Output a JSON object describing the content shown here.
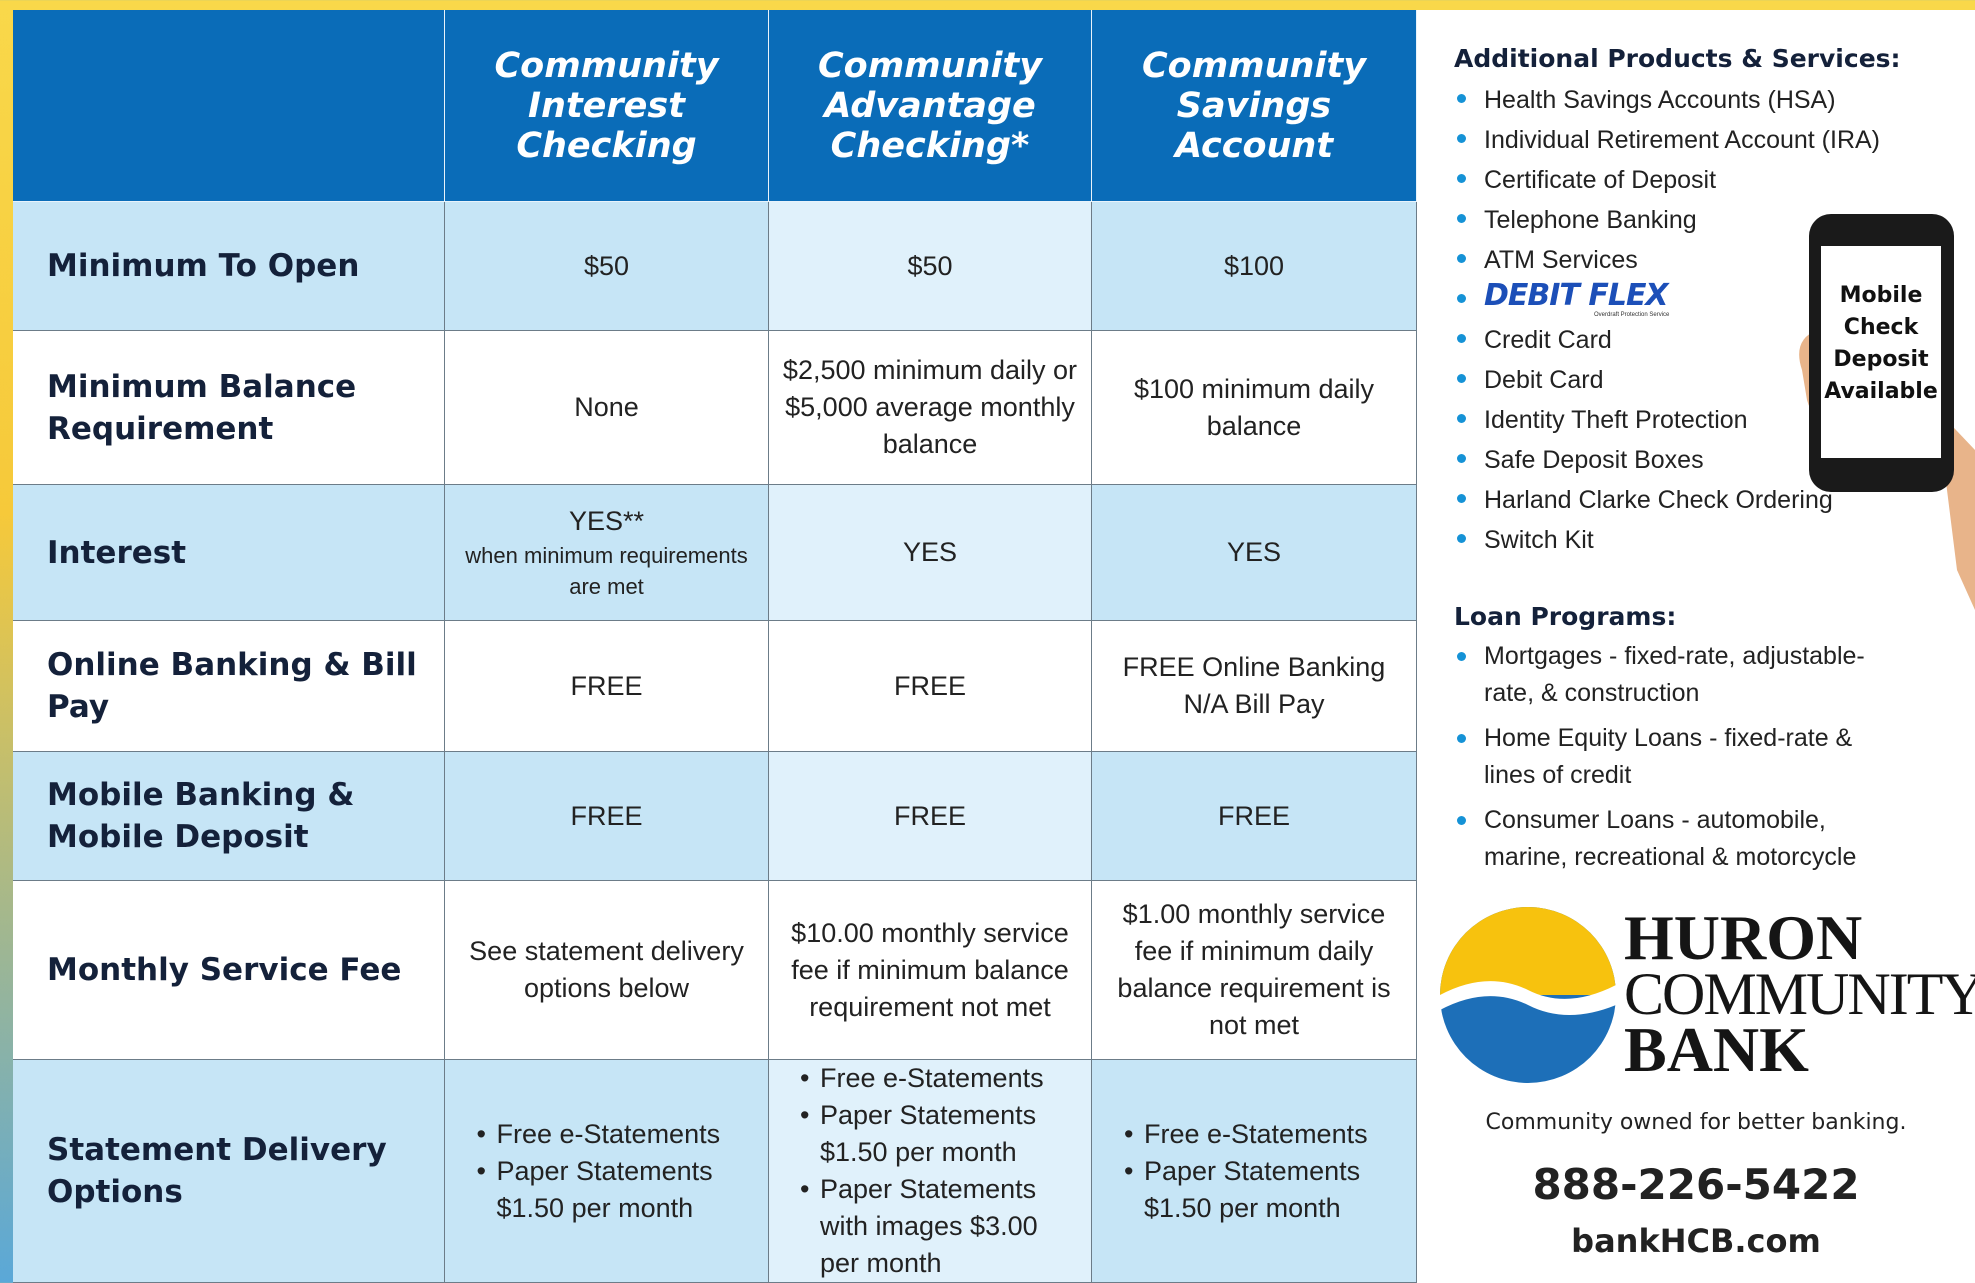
{
  "table": {
    "columns": [
      "Community Interest Checking",
      "Community Advantage Checking*",
      "Community Savings Account"
    ],
    "rows": [
      {
        "label": "Minimum To Open",
        "cells": [
          "$50",
          "$50",
          "$100"
        ]
      },
      {
        "label": "Minimum Balance Requirement",
        "cells": [
          "None",
          "$2,500 minimum daily or $5,000 average monthly balance",
          "$100 minimum daily balance"
        ]
      },
      {
        "label": "Interest",
        "cells": [
          {
            "text": "YES**",
            "note": "when minimum requirements are met"
          },
          "YES",
          "YES"
        ]
      },
      {
        "label": "Online Banking & Bill Pay",
        "cells": [
          "FREE",
          "FREE",
          {
            "lines": [
              "FREE Online Banking",
              "N/A Bill Pay"
            ]
          }
        ]
      },
      {
        "label": "Mobile Banking & Mobile Deposit",
        "cells": [
          "FREE",
          "FREE",
          "FREE"
        ]
      },
      {
        "label": "Monthly Service Fee",
        "cells": [
          "See statement delivery options below",
          "$10.00 monthly service fee if minimum balance requirement not met",
          "$1.00 monthly service fee if minimum daily balance requirement is not met"
        ]
      },
      {
        "label": "Statement Delivery Options",
        "cells": [
          {
            "bullets": [
              "Free e-Statements",
              "Paper Statements $1.50 per month"
            ]
          },
          {
            "bullets": [
              "Free e-Statements",
              "Paper Statements $1.50 per month",
              "Paper Statements with images $3.00 per month"
            ]
          },
          {
            "bullets": [
              "Free e-Statements",
              "Paper Statements $1.50 per month"
            ]
          }
        ]
      }
    ]
  },
  "sidebar": {
    "products_title": "Additional Products & Services:",
    "products": [
      "Health Savings Accounts (HSA)",
      "Individual Retirement Account (IRA)",
      "Certificate of Deposit",
      "Telephone Banking",
      "ATM Services",
      {
        "logo": "DEBIT FLEX",
        "tagline": "Overdraft Protection Service"
      },
      "Credit Card",
      "Debit Card",
      "Identity Theft Protection",
      "Safe Deposit Boxes",
      "Harland Clarke Check Ordering",
      "Switch Kit"
    ],
    "phone_badge": "Mobile Check Deposit Available",
    "loans_title": "Loan Programs:",
    "loans": [
      "Mortgages - fixed-rate, adjustable-rate, & construction",
      "Home Equity Loans  - fixed-rate & lines of credit",
      "Consumer Loans - automobile, marine, recreational & motorcycle"
    ],
    "logo": [
      "HURON",
      "COMMUNITY",
      "BANK"
    ],
    "tagline": "Community owned for better banking.",
    "phone": "888-226-5422",
    "website": "bankHCB.com"
  }
}
